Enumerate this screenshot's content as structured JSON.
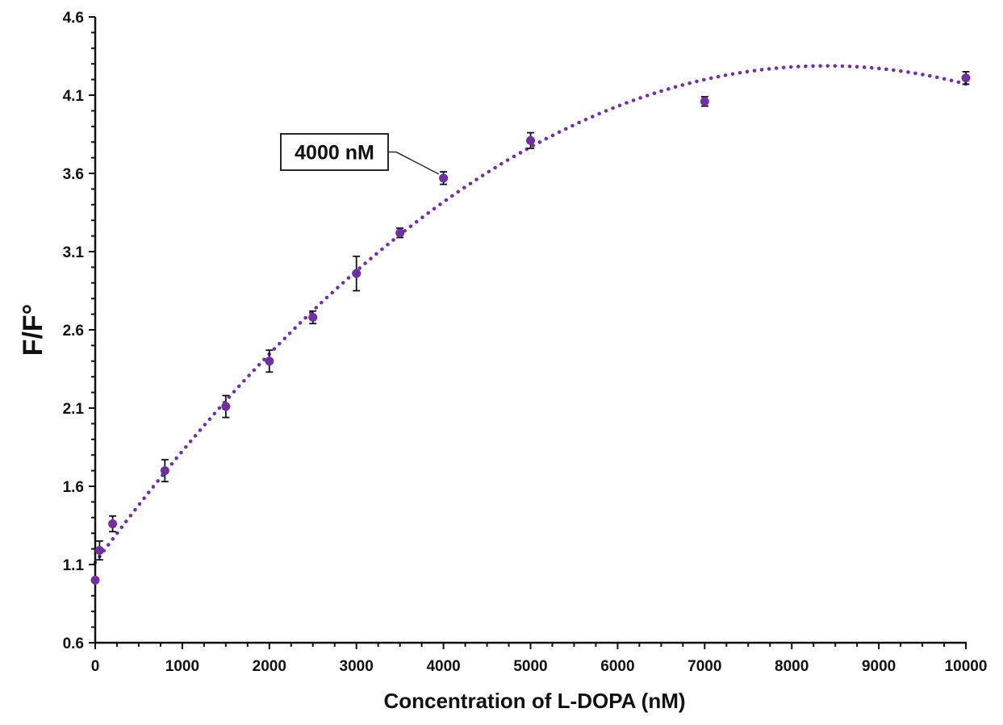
{
  "chart_data": {
    "type": "scatter",
    "xlabel": "Concentration of L-DOPA (nM)",
    "ylabel": "F/F°",
    "xlim": [
      0,
      10000
    ],
    "ylim": [
      0.6,
      4.6
    ],
    "x_ticks": [
      "0",
      "1000",
      "2000",
      "3000",
      "4000",
      "5000",
      "6000",
      "7000",
      "8000",
      "9000",
      "10000"
    ],
    "y_ticks": [
      "0.6",
      "1.1",
      "1.6",
      "2.1",
      "2.6",
      "3.1",
      "3.6",
      "4.1",
      "4.6"
    ],
    "grid": false,
    "legend": "none",
    "marker_color": "#7030a0",
    "trendline_color": "#7030a0",
    "trendline_style": "dotted",
    "trendline_type": "polynomial",
    "series": [
      {
        "points": [
          {
            "x": 0,
            "y": 1.0,
            "err": 0
          },
          {
            "x": 50,
            "y": 1.19,
            "err": 0.06
          },
          {
            "x": 200,
            "y": 1.36,
            "err": 0.05
          },
          {
            "x": 800,
            "y": 1.7,
            "err": 0.07
          },
          {
            "x": 1500,
            "y": 2.11,
            "err": 0.07
          },
          {
            "x": 2000,
            "y": 2.4,
            "err": 0.07
          },
          {
            "x": 2500,
            "y": 2.68,
            "err": 0.04
          },
          {
            "x": 3000,
            "y": 2.96,
            "err": 0.11
          },
          {
            "x": 3500,
            "y": 3.22,
            "err": 0.03
          },
          {
            "x": 4000,
            "y": 3.57,
            "err": 0.04
          },
          {
            "x": 5000,
            "y": 3.81,
            "err": 0.05
          },
          {
            "x": 7000,
            "y": 4.06,
            "err": 0.03
          },
          {
            "x": 10000,
            "y": 4.21,
            "err": 0.04
          }
        ]
      }
    ],
    "annotations": [
      {
        "text": "4000 nM",
        "x": 4000,
        "y": 3.57
      }
    ]
  }
}
